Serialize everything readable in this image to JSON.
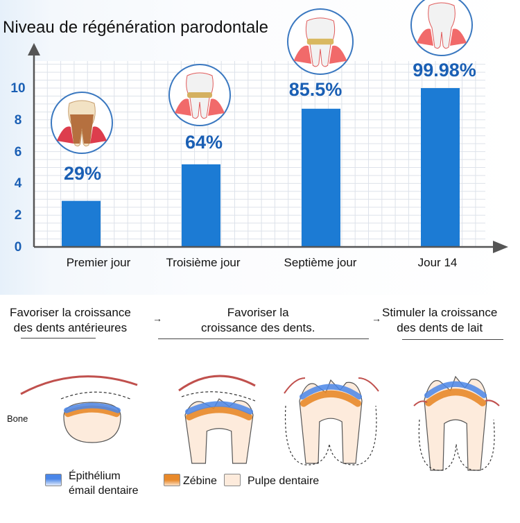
{
  "chart_data": {
    "type": "bar",
    "title": "Niveau de régénération parodontale",
    "categories": [
      "Premier jour",
      "Troisième jour",
      "Septième jour",
      "Jour 14"
    ],
    "values": [
      2.9,
      5.2,
      8.7,
      10
    ],
    "data_labels": [
      "29%",
      "64%",
      "85.5%",
      "99.98%"
    ],
    "xlabel": "",
    "ylabel": "",
    "ylim": [
      0,
      11
    ],
    "yticks": [
      "0",
      "2",
      "4",
      "6",
      "8",
      "10"
    ],
    "grid": true,
    "bar_color": "#1c7bd4",
    "label_color": "#1a5fb4"
  },
  "stages": [
    {
      "line1": "Favoriser la croissance",
      "line2": "des dents antérieures"
    },
    {
      "line1": "Favoriser la",
      "line2": "croissance des dents."
    },
    {
      "line1": "Stimuler la croissance",
      "line2": "des dents de lait"
    }
  ],
  "arrows": [
    "→",
    "→"
  ],
  "bone_label": "Bone",
  "legend": [
    {
      "label_line1": "Épithélium",
      "label_line2": "émail dentaire",
      "color": "#4a86e8"
    },
    {
      "label_line1": "Zébine",
      "label_line2": "",
      "color": "#e8892a"
    },
    {
      "label_line1": "Pulpe dentaire",
      "label_line2": "",
      "color": "#fde9d9"
    }
  ]
}
